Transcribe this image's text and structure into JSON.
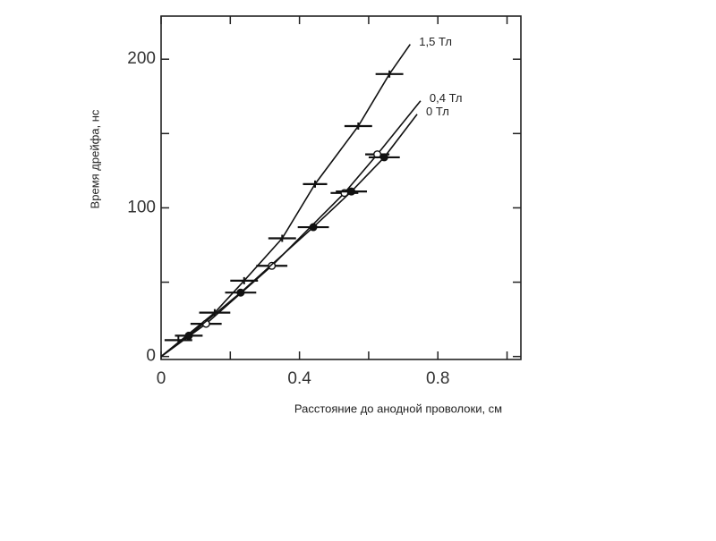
{
  "chart_data": {
    "type": "scatter",
    "xlabel": "Расстояние до анодной проволоки, см",
    "ylabel": "Время дрейфа, нс",
    "xlim": [
      0,
      1.04
    ],
    "ylim": [
      -2,
      229
    ],
    "xticks": [
      0,
      0.4,
      0.8
    ],
    "xminor_ticks": [
      0.2,
      0.6,
      1.0
    ],
    "yticks": [
      0,
      100,
      200
    ],
    "yminor_ticks": [
      50,
      150
    ],
    "series": [
      {
        "name": "1,5 Тл",
        "marker": "bar",
        "color": "#111111",
        "x": [
          0.05,
          0.155,
          0.24,
          0.35,
          0.445,
          0.57,
          0.66
        ],
        "y": [
          11,
          29.5,
          51,
          79.5,
          116,
          155,
          190
        ],
        "xerr": [
          0.04,
          0.045,
          0.04,
          0.04,
          0.035,
          0.04,
          0.04
        ],
        "curve_x": [
          0,
          0.155,
          0.24,
          0.35,
          0.445,
          0.57,
          0.66,
          0.72
        ],
        "curve_y": [
          0,
          29.5,
          51,
          79.5,
          116,
          155,
          190,
          210
        ]
      },
      {
        "name": "0,4 Тл",
        "marker": "open",
        "color": "#111111",
        "x": [
          0.13,
          0.32,
          0.53,
          0.625
        ],
        "y": [
          22,
          61,
          110,
          136
        ],
        "xerr": [
          0.045,
          0.045,
          0.04,
          0.035
        ],
        "curve_x": [
          0,
          0.13,
          0.32,
          0.53,
          0.625,
          0.75
        ],
        "curve_y": [
          0,
          22,
          61,
          110,
          136,
          172
        ]
      },
      {
        "name": "0 Тл",
        "marker": "filled",
        "color": "#111111",
        "x": [
          0.08,
          0.23,
          0.44,
          0.55,
          0.645
        ],
        "y": [
          14,
          43,
          87,
          111,
          134
        ],
        "xerr": [
          0.04,
          0.045,
          0.045,
          0.045,
          0.045
        ],
        "curve_x": [
          0,
          0.08,
          0.23,
          0.44,
          0.55,
          0.645,
          0.74
        ],
        "curve_y": [
          0,
          14,
          43,
          87,
          111,
          134,
          163
        ]
      }
    ]
  }
}
